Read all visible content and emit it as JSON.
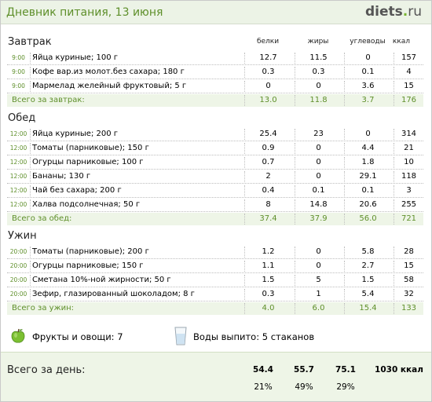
{
  "header": {
    "title": "Дневник питания, 13 июня",
    "logo_main": "diets",
    "logo_dot": ".",
    "logo_tld": "ru"
  },
  "columns": {
    "protein": "белки",
    "fat": "жиры",
    "carbs": "углеводы",
    "kcal": "ккал"
  },
  "meals": [
    {
      "title": "Завтрак",
      "items": [
        {
          "time": "9:00",
          "name": "Яйца куриные; 100 г",
          "protein": "12.7",
          "fat": "11.5",
          "carbs": "0",
          "kcal": "157"
        },
        {
          "time": "9:00",
          "name": "Кофе вар.из молот.без сахара; 180 г",
          "protein": "0.3",
          "fat": "0.3",
          "carbs": "0.1",
          "kcal": "4"
        },
        {
          "time": "9:00",
          "name": "Мармелад желейный фруктовый; 5 г",
          "protein": "0",
          "fat": "0",
          "carbs": "3.6",
          "kcal": "15"
        }
      ],
      "total": {
        "label": "Всего за завтрак:",
        "protein": "13.0",
        "fat": "11.8",
        "carbs": "3.7",
        "kcal": "176"
      }
    },
    {
      "title": "Обед",
      "items": [
        {
          "time": "12:00",
          "name": "Яйца куриные; 200 г",
          "protein": "25.4",
          "fat": "23",
          "carbs": "0",
          "kcal": "314"
        },
        {
          "time": "12:00",
          "name": "Томаты (парниковые); 150 г",
          "protein": "0.9",
          "fat": "0",
          "carbs": "4.4",
          "kcal": "21"
        },
        {
          "time": "12:00",
          "name": "Огурцы парниковые; 100 г",
          "protein": "0.7",
          "fat": "0",
          "carbs": "1.8",
          "kcal": "10"
        },
        {
          "time": "12:00",
          "name": "Бананы; 130 г",
          "protein": "2",
          "fat": "0",
          "carbs": "29.1",
          "kcal": "118"
        },
        {
          "time": "12:00",
          "name": "Чай без сахара; 200 г",
          "protein": "0.4",
          "fat": "0.1",
          "carbs": "0.1",
          "kcal": "3"
        },
        {
          "time": "12:00",
          "name": "Халва подсолнечная; 50 г",
          "protein": "8",
          "fat": "14.8",
          "carbs": "20.6",
          "kcal": "255"
        }
      ],
      "total": {
        "label": "Всего за обед:",
        "protein": "37.4",
        "fat": "37.9",
        "carbs": "56.0",
        "kcal": "721"
      }
    },
    {
      "title": "Ужин",
      "items": [
        {
          "time": "20:00",
          "name": "Томаты (парниковые); 200 г",
          "protein": "1.2",
          "fat": "0",
          "carbs": "5.8",
          "kcal": "28"
        },
        {
          "time": "20:00",
          "name": "Огурцы парниковые; 150 г",
          "protein": "1.1",
          "fat": "0",
          "carbs": "2.7",
          "kcal": "15"
        },
        {
          "time": "20:00",
          "name": "Сметана 10%-ной жирности; 50 г",
          "protein": "1.5",
          "fat": "5",
          "carbs": "1.5",
          "kcal": "58"
        },
        {
          "time": "20:00",
          "name": "Зефир, глазированный шоколадом; 8 г",
          "protein": "0.3",
          "fat": "1",
          "carbs": "5.4",
          "kcal": "32"
        }
      ],
      "total": {
        "label": "Всего за ужин:",
        "protein": "4.0",
        "fat": "6.0",
        "carbs": "15.4",
        "kcal": "133"
      }
    }
  ],
  "extras": {
    "fruits_label": "Фрукты и овощи:",
    "fruits_value": "7",
    "water_label": "Воды выпито:",
    "water_value": "5 стаканов"
  },
  "day": {
    "label": "Всего за день:",
    "protein": "54.4",
    "fat": "55.7",
    "carbs": "75.1",
    "kcal": "1030 ккал",
    "protein_pct": "21%",
    "fat_pct": "49%",
    "carbs_pct": "29%"
  },
  "colors": {
    "accent": "#5e8f2a",
    "tint": "#eef5e7"
  }
}
